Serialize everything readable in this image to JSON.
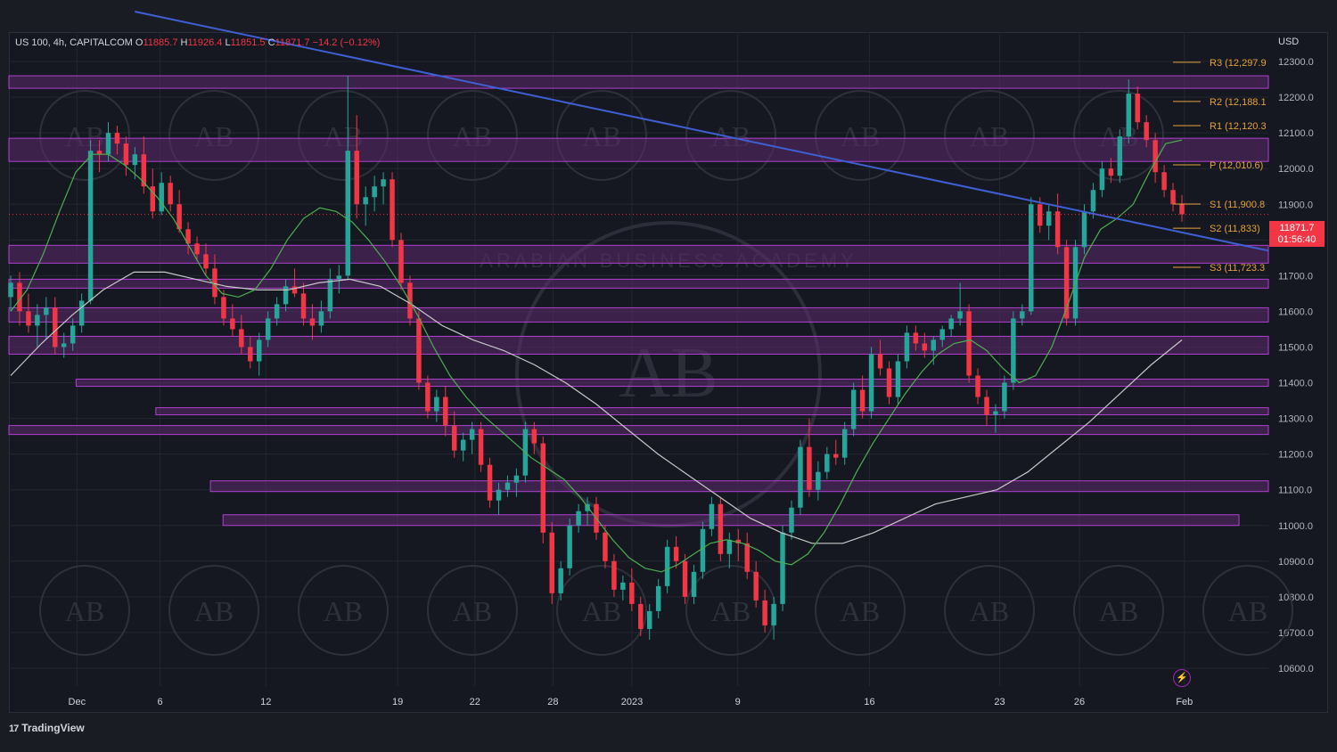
{
  "header": {
    "symbol": "US 100, 4h, CAPITALCOM",
    "open_label": "O",
    "open": "11885.7",
    "high_label": "H",
    "high": "11926.4",
    "low_label": "L",
    "low": "11851.5",
    "close_label": "C",
    "close": "11871.7",
    "change": "−14.2 (−0.12%)"
  },
  "currency": "USD",
  "last_price": {
    "value": "11871.7",
    "countdown": "01:56:40"
  },
  "branding": {
    "logo_text": "TradingView",
    "watermark_text": "ARABIAN BUSINESS ACADEMY",
    "watermark_initials": "AB"
  },
  "colors": {
    "background": "#151821",
    "grid": "#23262f",
    "up": "#26a69a",
    "down": "#f23645",
    "zone_fill": "#5c2a6e",
    "zone_stroke": "#b040d0",
    "trendline": "#3f5fd4",
    "ma_fast": "#4caf50",
    "ma_slow": "#c8c8c8",
    "pivot": "#e6a23c",
    "text": "#b2b5be"
  },
  "chart_data": {
    "type": "candlestick",
    "y_axis": {
      "ylim": [
        10550,
        12380
      ],
      "ticks": [
        12300,
        12200,
        12100,
        12000,
        11900,
        11800,
        11700,
        11600,
        11500,
        11400,
        11300,
        11200,
        11100,
        11000,
        10900,
        10800,
        10700,
        10600
      ],
      "tick_labels": [
        "12300.0",
        "12200.0",
        "12100.0",
        "12000.0",
        "11900.0",
        "11800.0",
        "11700.0",
        "11600.0",
        "11500.0",
        "11400.0",
        "11300.0",
        "11200.0",
        "11100.0",
        "11000.0",
        "10900.0",
        "10800.0",
        "10700.0",
        "10600.0"
      ]
    },
    "x_axis": {
      "range": [
        0,
        150
      ],
      "ticks": [
        {
          "label": "Dec",
          "pos": 8.1
        },
        {
          "label": "6",
          "pos": 18.0
        },
        {
          "label": "12",
          "pos": 30.6
        },
        {
          "label": "19",
          "pos": 46.3
        },
        {
          "label": "22",
          "pos": 55.5
        },
        {
          "label": "28",
          "pos": 64.8
        },
        {
          "label": "2023",
          "pos": 74.2
        },
        {
          "label": "9",
          "pos": 86.8
        },
        {
          "label": "16",
          "pos": 102.5
        },
        {
          "label": "23",
          "pos": 118.0
        },
        {
          "label": "26",
          "pos": 127.5
        },
        {
          "label": "Feb",
          "pos": 140.0
        }
      ]
    },
    "pivots": [
      {
        "label": "R3 (12,297.9",
        "value": 12297.9
      },
      {
        "label": "R2 (12,188.1",
        "value": 12188.1
      },
      {
        "label": "R1 (12,120.3",
        "value": 12120.3
      },
      {
        "label": "P (12,010.6)",
        "value": 12010.6
      },
      {
        "label": "S1 (11,900.8",
        "value": 11900.8
      },
      {
        "label": "S2 (11,833)",
        "value": 11833
      },
      {
        "label": "S3 (11,723.3",
        "value": 11723.3
      }
    ],
    "zones": [
      {
        "y1": 12225,
        "y2": 12260,
        "x1": 0,
        "x2": 150
      },
      {
        "y1": 12020,
        "y2": 12085,
        "x1": 0,
        "x2": 150
      },
      {
        "y1": 11735,
        "y2": 11785,
        "x1": 0,
        "x2": 150
      },
      {
        "y1": 11665,
        "y2": 11690,
        "x1": 0,
        "x2": 150
      },
      {
        "y1": 11570,
        "y2": 11610,
        "x1": 0,
        "x2": 150
      },
      {
        "y1": 11480,
        "y2": 11530,
        "x1": 0,
        "x2": 150
      },
      {
        "y1": 11390,
        "y2": 11410,
        "x1": 8,
        "x2": 150
      },
      {
        "y1": 11310,
        "y2": 11330,
        "x1": 17.5,
        "x2": 150
      },
      {
        "y1": 11255,
        "y2": 11280,
        "x1": 0,
        "x2": 150
      },
      {
        "y1": 11095,
        "y2": 11125,
        "x1": 24,
        "x2": 150
      },
      {
        "y1": 11000,
        "y2": 11030,
        "x1": 25.5,
        "x2": 146.5
      }
    ],
    "trendline": {
      "x1": 15,
      "y1": 12440,
      "x2": 150,
      "y2": 11770
    },
    "series": [
      {
        "kind": "candles",
        "ohlc": [
          [
            11640,
            11700,
            11600,
            11680
          ],
          [
            11680,
            11710,
            11560,
            11600
          ],
          [
            11600,
            11650,
            11540,
            11560
          ],
          [
            11560,
            11620,
            11500,
            11590
          ],
          [
            11590,
            11640,
            11520,
            11610
          ],
          [
            11610,
            11640,
            11480,
            11500
          ],
          [
            11500,
            11540,
            11470,
            11510
          ],
          [
            11510,
            11580,
            11490,
            11560
          ],
          [
            11560,
            11650,
            11540,
            11630
          ],
          [
            11630,
            12080,
            11620,
            12050
          ],
          [
            12050,
            12080,
            11990,
            12040
          ],
          [
            12040,
            12130,
            12020,
            12100
          ],
          [
            12100,
            12120,
            12040,
            12070
          ],
          [
            12070,
            12090,
            11980,
            12010
          ],
          [
            12010,
            12060,
            11970,
            12040
          ],
          [
            12040,
            12090,
            11930,
            11950
          ],
          [
            11950,
            12000,
            11860,
            11880
          ],
          [
            11880,
            11990,
            11870,
            11960
          ],
          [
            11960,
            11980,
            11880,
            11900
          ],
          [
            11900,
            11940,
            11820,
            11830
          ],
          [
            11830,
            11850,
            11760,
            11790
          ],
          [
            11790,
            11810,
            11740,
            11760
          ],
          [
            11760,
            11790,
            11700,
            11720
          ],
          [
            11720,
            11760,
            11620,
            11640
          ],
          [
            11640,
            11660,
            11560,
            11580
          ],
          [
            11580,
            11620,
            11530,
            11550
          ],
          [
            11550,
            11590,
            11480,
            11500
          ],
          [
            11500,
            11530,
            11440,
            11460
          ],
          [
            11460,
            11540,
            11420,
            11520
          ],
          [
            11520,
            11600,
            11500,
            11580
          ],
          [
            11580,
            11640,
            11560,
            11620
          ],
          [
            11620,
            11690,
            11600,
            11670
          ],
          [
            11670,
            11720,
            11640,
            11650
          ],
          [
            11650,
            11680,
            11560,
            11580
          ],
          [
            11580,
            11620,
            11520,
            11560
          ],
          [
            11560,
            11630,
            11540,
            11600
          ],
          [
            11600,
            11720,
            11580,
            11690
          ],
          [
            11690,
            11730,
            11650,
            11700
          ],
          [
            11700,
            12260,
            11690,
            12050
          ],
          [
            12050,
            12150,
            11860,
            11900
          ],
          [
            11900,
            11950,
            11840,
            11920
          ],
          [
            11920,
            11980,
            11880,
            11950
          ],
          [
            11950,
            11990,
            11900,
            11970
          ],
          [
            11970,
            11990,
            11780,
            11800
          ],
          [
            11800,
            11820,
            11660,
            11680
          ],
          [
            11680,
            11700,
            11560,
            11580
          ],
          [
            11580,
            11600,
            11380,
            11400
          ],
          [
            11400,
            11420,
            11300,
            11320
          ],
          [
            11320,
            11380,
            11290,
            11360
          ],
          [
            11360,
            11390,
            11250,
            11280
          ],
          [
            11280,
            11320,
            11190,
            11210
          ],
          [
            11210,
            11260,
            11180,
            11240
          ],
          [
            11240,
            11290,
            11200,
            11270
          ],
          [
            11270,
            11290,
            11150,
            11170
          ],
          [
            11170,
            11190,
            11050,
            11070
          ],
          [
            11070,
            11120,
            11030,
            11100
          ],
          [
            11100,
            11140,
            11080,
            11120
          ],
          [
            11120,
            11160,
            11080,
            11140
          ],
          [
            11140,
            11290,
            11120,
            11270
          ],
          [
            11270,
            11290,
            11200,
            11230
          ],
          [
            11230,
            11250,
            10950,
            10980
          ],
          [
            10980,
            11010,
            10780,
            10810
          ],
          [
            10810,
            10900,
            10790,
            10880
          ],
          [
            10880,
            11020,
            10860,
            11000
          ],
          [
            11000,
            11060,
            10980,
            11040
          ],
          [
            11040,
            11080,
            11000,
            11060
          ],
          [
            11060,
            11080,
            10960,
            10980
          ],
          [
            10980,
            11000,
            10880,
            10900
          ],
          [
            10900,
            10920,
            10800,
            10820
          ],
          [
            10820,
            10860,
            10790,
            10840
          ],
          [
            10840,
            10880,
            10760,
            10780
          ],
          [
            10780,
            10800,
            10690,
            10710
          ],
          [
            10710,
            10780,
            10680,
            10760
          ],
          [
            10760,
            10850,
            10740,
            10830
          ],
          [
            10830,
            10960,
            10810,
            10940
          ],
          [
            10940,
            10970,
            10880,
            10900
          ],
          [
            10900,
            10920,
            10780,
            10800
          ],
          [
            10800,
            10890,
            10780,
            10870
          ],
          [
            10870,
            11010,
            10850,
            10990
          ],
          [
            10990,
            11080,
            10970,
            11060
          ],
          [
            11060,
            11080,
            10900,
            10920
          ],
          [
            10920,
            10980,
            10880,
            10960
          ],
          [
            10960,
            10990,
            10900,
            10950
          ],
          [
            10950,
            10980,
            10850,
            10870
          ],
          [
            10870,
            10900,
            10770,
            10790
          ],
          [
            10790,
            10820,
            10700,
            10720
          ],
          [
            10720,
            10800,
            10680,
            10780
          ],
          [
            10780,
            11000,
            10760,
            10980
          ],
          [
            10980,
            11070,
            10960,
            11050
          ],
          [
            11050,
            11240,
            11030,
            11220
          ],
          [
            11220,
            11300,
            11080,
            11100
          ],
          [
            11100,
            11180,
            11070,
            11150
          ],
          [
            11150,
            11220,
            11130,
            11200
          ],
          [
            11200,
            11240,
            11170,
            11190
          ],
          [
            11190,
            11290,
            11170,
            11270
          ],
          [
            11270,
            11400,
            11250,
            11380
          ],
          [
            11380,
            11420,
            11300,
            11320
          ],
          [
            11320,
            11500,
            11300,
            11480
          ],
          [
            11480,
            11520,
            11420,
            11440
          ],
          [
            11440,
            11460,
            11340,
            11360
          ],
          [
            11360,
            11480,
            11340,
            11460
          ],
          [
            11460,
            11560,
            11440,
            11540
          ],
          [
            11540,
            11560,
            11490,
            11510
          ],
          [
            11510,
            11540,
            11470,
            11490
          ],
          [
            11490,
            11530,
            11450,
            11520
          ],
          [
            11520,
            11560,
            11500,
            11550
          ],
          [
            11550,
            11590,
            11530,
            11580
          ],
          [
            11580,
            11680,
            11560,
            11600
          ],
          [
            11600,
            11620,
            11400,
            11420
          ],
          [
            11420,
            11440,
            11340,
            11360
          ],
          [
            11360,
            11380,
            11280,
            11310
          ],
          [
            11310,
            11340,
            11260,
            11320
          ],
          [
            11320,
            11420,
            11300,
            11400
          ],
          [
            11400,
            11600,
            11380,
            11580
          ],
          [
            11580,
            11620,
            11560,
            11600
          ],
          [
            11600,
            11920,
            11590,
            11900
          ],
          [
            11900,
            11920,
            11820,
            11840
          ],
          [
            11840,
            11900,
            11800,
            11880
          ],
          [
            11880,
            11930,
            11760,
            11780
          ],
          [
            11780,
            11800,
            11560,
            11580
          ],
          [
            11580,
            11800,
            11560,
            11780
          ],
          [
            11780,
            11900,
            11760,
            11880
          ],
          [
            11880,
            11960,
            11860,
            11940
          ],
          [
            11940,
            12020,
            11920,
            12000
          ],
          [
            12000,
            12030,
            11960,
            11980
          ],
          [
            11980,
            12110,
            11960,
            12090
          ],
          [
            12090,
            12250,
            12070,
            12210
          ],
          [
            12210,
            12230,
            12110,
            12130
          ],
          [
            12130,
            12150,
            12060,
            12080
          ],
          [
            12080,
            12100,
            11960,
            11990
          ],
          [
            11990,
            12010,
            11920,
            11940
          ],
          [
            11940,
            11960,
            11880,
            11900
          ],
          [
            11900,
            11926,
            11851,
            11872
          ]
        ]
      },
      {
        "kind": "ma_fast",
        "y": [
          11600,
          11660,
          11760,
          11880,
          11990,
          12040,
          12040,
          12010,
          11970,
          11920,
          11860,
          11780,
          11700,
          11650,
          11640,
          11660,
          11720,
          11800,
          11860,
          11890,
          11880,
          11850,
          11800,
          11740,
          11670,
          11590,
          11500,
          11420,
          11360,
          11310,
          11270,
          11230,
          11190,
          11160,
          11130,
          11080,
          11020,
          10960,
          10910,
          10880,
          10870,
          10890,
          10920,
          10950,
          10960,
          10950,
          10930,
          10900,
          10890,
          10920,
          10980,
          11060,
          11150,
          11230,
          11300,
          11370,
          11430,
          11480,
          11510,
          11520,
          11490,
          11440,
          11400,
          11420,
          11500,
          11620,
          11750,
          11830,
          11860,
          11900,
          11990,
          12070,
          12080
        ]
      },
      {
        "kind": "ma_slow",
        "y": [
          11420,
          11510,
          11590,
          11660,
          11710,
          11710,
          11690,
          11670,
          11660,
          11660,
          11680,
          11690,
          11670,
          11620,
          11560,
          11520,
          11490,
          11450,
          11400,
          11340,
          11270,
          11200,
          11140,
          11080,
          11020,
          10980,
          10950,
          10950,
          10980,
          11020,
          11060,
          11080,
          11100,
          11150,
          11220,
          11290,
          11370,
          11450,
          11520
        ]
      }
    ]
  }
}
